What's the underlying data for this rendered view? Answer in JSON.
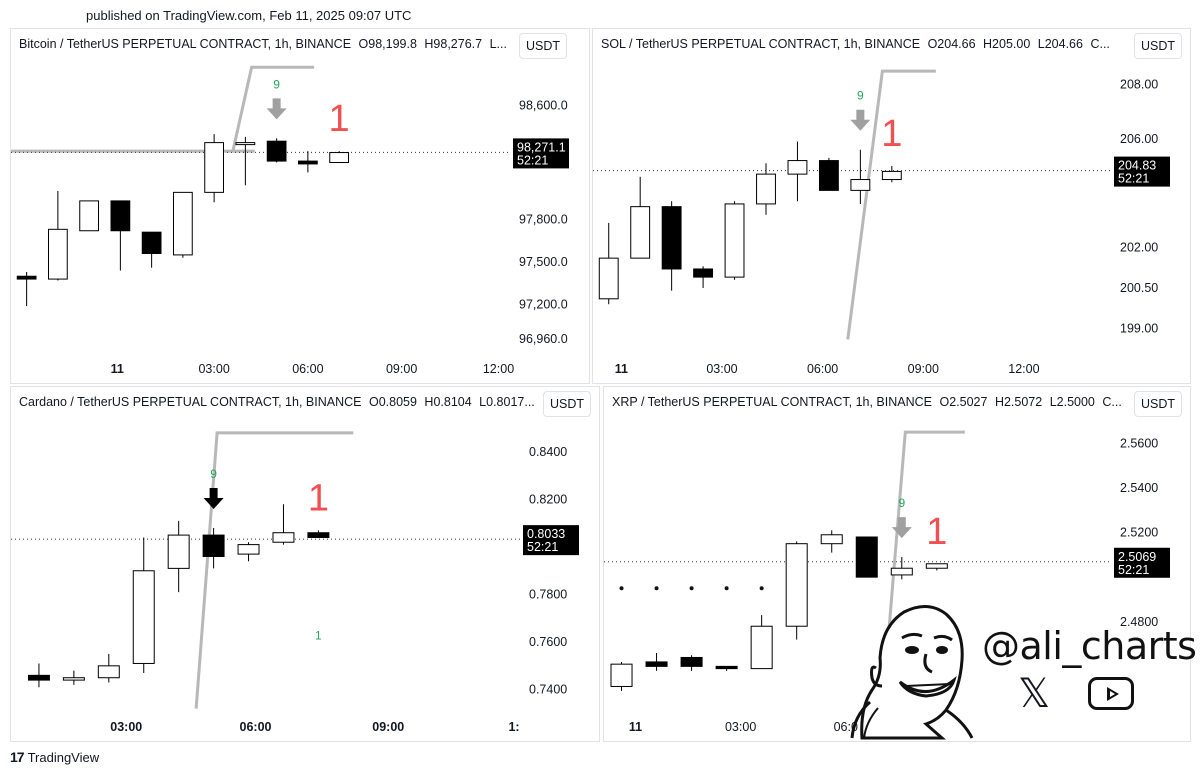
{
  "published": "published on TradingView.com, Feb 11, 2025 09:07 UTC",
  "brand": {
    "mark": "17",
    "name": "TradingView"
  },
  "watermark": {
    "handle": "@ali_charts",
    "icons": [
      "x-icon",
      "youtube-icon"
    ]
  },
  "colors": {
    "up_fill": "#ffffff",
    "down_fill": "#000000",
    "candle_border": "#000000",
    "signal_nine": "#26a65b",
    "signal_one": "#f05050",
    "arrow_grey": "#a0a0a0",
    "arrow_black": "#000000",
    "trendline": "#b8b8b8",
    "last_price_bg": "#000000"
  },
  "chart_data": [
    {
      "type": "candlestick",
      "title_parts": [
        "Bitcoin / TetherUS PERPETUAL CONTRACT, 1h, BINANCE",
        "O98,199.8",
        "H98,276.7",
        "L..."
      ],
      "currency": "USDT",
      "xlim": [
        0.5,
        16.5
      ],
      "x_ticks": [
        {
          "x": 3.9,
          "label": "11"
        },
        {
          "x": 7,
          "label": "03:00"
        },
        {
          "x": 10,
          "label": "06:00"
        },
        {
          "x": 13,
          "label": "09:00"
        },
        {
          "x": 16.1,
          "label": "12:00"
        }
      ],
      "ylim": [
        96860,
        98900
      ],
      "y_ticks": [
        {
          "v": 98600,
          "label": "98,600.0"
        },
        {
          "v": 97800,
          "label": "97,800.0"
        },
        {
          "v": 97500,
          "label": "97,500.0"
        },
        {
          "v": 97200,
          "label": "97,200.0"
        },
        {
          "v": 96960,
          "label": "96,960.0"
        }
      ],
      "candles": [
        {
          "x": 1,
          "o": 97400,
          "h": 97430,
          "l": 97190,
          "c": 97380
        },
        {
          "x": 2,
          "o": 97380,
          "h": 98000,
          "l": 97370,
          "c": 97730
        },
        {
          "x": 3,
          "o": 97720,
          "h": 97910,
          "l": 97720,
          "c": 97930
        },
        {
          "x": 4,
          "o": 97930,
          "h": 97920,
          "l": 97440,
          "c": 97720
        },
        {
          "x": 5,
          "o": 97710,
          "h": 97710,
          "l": 97460,
          "c": 97560
        },
        {
          "x": 6,
          "o": 97550,
          "h": 97980,
          "l": 97530,
          "c": 97990
        },
        {
          "x": 7,
          "o": 97990,
          "h": 98400,
          "l": 97920,
          "c": 98340
        },
        {
          "x": 8,
          "o": 98340,
          "h": 98380,
          "l": 98040,
          "c": 98340
        },
        {
          "x": 9,
          "o": 98350,
          "h": 98370,
          "l": 98200,
          "c": 98210
        },
        {
          "x": 10,
          "o": 98210,
          "h": 98280,
          "l": 98130,
          "c": 98190
        },
        {
          "x": 11,
          "o": 98200,
          "h": 98280,
          "l": 98200,
          "c": 98270
        }
      ],
      "last_price": {
        "value": 98271.1,
        "label": "98,271.1",
        "countdown": "52:21"
      },
      "signals": {
        "nine": {
          "x": 9,
          "label": "9",
          "arrow": "grey"
        },
        "one": {
          "x": 11,
          "label": "1"
        }
      },
      "trendline": {
        "points": [
          [
            7.6,
            98280
          ],
          [
            8.2,
            98870
          ],
          [
            10.2,
            98870
          ]
        ]
      },
      "horizontal_line": {
        "y": 98280,
        "x_from": 0.5,
        "x_to": 8.3
      }
    },
    {
      "type": "candlestick",
      "title_parts": [
        "SOL / TetherUS PERPETUAL CONTRACT, 1h, BINANCE",
        "O204.66",
        "H205.00",
        "L204.66",
        "C..."
      ],
      "currency": "USDT",
      "xlim": [
        0.5,
        17
      ],
      "x_ticks": [
        {
          "x": 1.4,
          "label": "11"
        },
        {
          "x": 4.6,
          "label": "03:00"
        },
        {
          "x": 7.8,
          "label": "06:00"
        },
        {
          "x": 11,
          "label": "09:00"
        },
        {
          "x": 14.2,
          "label": "12:00"
        }
      ],
      "ylim": [
        198.1,
        208.8
      ],
      "y_ticks": [
        {
          "v": 208,
          "label": "208.00"
        },
        {
          "v": 206,
          "label": "206.00"
        },
        {
          "v": 202,
          "label": "202.00"
        },
        {
          "v": 200.5,
          "label": "200.50"
        },
        {
          "v": 199,
          "label": "199.00"
        }
      ],
      "candles": [
        {
          "x": 1,
          "o": 200.1,
          "h": 202.9,
          "l": 199.9,
          "c": 201.6
        },
        {
          "x": 2,
          "o": 201.6,
          "h": 204.6,
          "l": 201.6,
          "c": 203.5
        },
        {
          "x": 3,
          "o": 203.5,
          "h": 203.7,
          "l": 200.4,
          "c": 201.2
        },
        {
          "x": 4,
          "o": 201.2,
          "h": 201.3,
          "l": 200.5,
          "c": 200.9
        },
        {
          "x": 5,
          "o": 200.9,
          "h": 203.7,
          "l": 200.8,
          "c": 203.6
        },
        {
          "x": 6,
          "o": 203.6,
          "h": 205.1,
          "l": 203.2,
          "c": 204.7
        },
        {
          "x": 7,
          "o": 204.7,
          "h": 205.9,
          "l": 203.7,
          "c": 205.2
        },
        {
          "x": 8,
          "o": 205.2,
          "h": 205.3,
          "l": 204.2,
          "c": 204.1
        },
        {
          "x": 9,
          "o": 204.1,
          "h": 205.6,
          "l": 203.6,
          "c": 204.5
        },
        {
          "x": 10,
          "o": 204.5,
          "h": 205.0,
          "l": 204.4,
          "c": 204.8
        }
      ],
      "last_price": {
        "value": 204.83,
        "label": "204.83",
        "countdown": "52:21"
      },
      "signals": {
        "nine": {
          "x": 9,
          "label": "9",
          "arrow": "grey"
        },
        "one": {
          "x": 10,
          "label": "1"
        }
      },
      "trendline": {
        "points": [
          [
            8.6,
            198.6
          ],
          [
            9.7,
            208.5
          ],
          [
            11.4,
            208.5
          ]
        ]
      },
      "horizontal_line": null
    },
    {
      "type": "candlestick",
      "title_parts": [
        "Cardano / TetherUS PERPETUAL CONTRACT, 1h, BINANCE",
        "O0.8059",
        "H0.8104",
        "L0.8017..."
      ],
      "currency": "USDT",
      "xlim": [
        0.2,
        14.8
      ],
      "x_ticks": [
        {
          "x": 3.5,
          "label": "03:00"
        },
        {
          "x": 7.2,
          "label": "06:00"
        },
        {
          "x": 11,
          "label": "09:00"
        },
        {
          "x": 14.6,
          "label": "1:"
        }
      ],
      "ylim": [
        0.731,
        0.853
      ],
      "y_ticks": [
        {
          "v": 0.84,
          "label": "0.8400"
        },
        {
          "v": 0.82,
          "label": "0.8200"
        },
        {
          "v": 0.78,
          "label": "0.7800"
        },
        {
          "v": 0.76,
          "label": "0.7600"
        },
        {
          "v": 0.74,
          "label": "0.7400"
        }
      ],
      "candles": [
        {
          "x": 1,
          "o": 0.746,
          "h": 0.751,
          "l": 0.741,
          "c": 0.744
        },
        {
          "x": 2,
          "o": 0.744,
          "h": 0.748,
          "l": 0.742,
          "c": 0.745
        },
        {
          "x": 3,
          "o": 0.745,
          "h": 0.755,
          "l": 0.743,
          "c": 0.75
        },
        {
          "x": 4,
          "o": 0.751,
          "h": 0.804,
          "l": 0.747,
          "c": 0.79
        },
        {
          "x": 5,
          "o": 0.791,
          "h": 0.811,
          "l": 0.781,
          "c": 0.805
        },
        {
          "x": 6,
          "o": 0.805,
          "h": 0.808,
          "l": 0.791,
          "c": 0.796
        },
        {
          "x": 7,
          "o": 0.797,
          "h": 0.802,
          "l": 0.794,
          "c": 0.801
        },
        {
          "x": 8,
          "o": 0.802,
          "h": 0.818,
          "l": 0.801,
          "c": 0.806
        },
        {
          "x": 9,
          "o": 0.806,
          "h": 0.807,
          "l": 0.804,
          "c": 0.804
        }
      ],
      "last_price": {
        "value": 0.8033,
        "label": "0.8033",
        "countdown": "52:21"
      },
      "signals": {
        "nine": {
          "x": 6,
          "label": "9",
          "arrow": "black"
        },
        "one": {
          "x": 9,
          "label": "1"
        },
        "extra": {
          "x": 9,
          "label": "1",
          "y": 0.761
        }
      },
      "trendline": {
        "points": [
          [
            5.5,
            0.732
          ],
          [
            6.1,
            0.848
          ],
          [
            10.0,
            0.848
          ]
        ]
      },
      "horizontal_line": null
    },
    {
      "type": "candlestick",
      "title_parts": [
        "XRP / TetherUS PERPETUAL CONTRACT, 1h, BINANCE",
        "O2.5027",
        "H2.5072",
        "L2.5000",
        "C..."
      ],
      "currency": "USDT",
      "xlim": [
        0.5,
        15
      ],
      "x_ticks": [
        {
          "x": 1.4,
          "label": "11"
        },
        {
          "x": 4.4,
          "label": "03:00"
        },
        {
          "x": 7.4,
          "label": "06:0"
        }
      ],
      "ylim": [
        2.44,
        2.57
      ],
      "y_ticks": [
        {
          "v": 2.56,
          "label": "2.5600"
        },
        {
          "v": 2.54,
          "label": "2.5400"
        },
        {
          "v": 2.52,
          "label": "2.5200"
        },
        {
          "v": 2.48,
          "label": "2.4800"
        }
      ],
      "candles": [
        {
          "x": 1,
          "o": 2.451,
          "h": 2.462,
          "l": 2.449,
          "c": 2.461
        },
        {
          "x": 2,
          "o": 2.462,
          "h": 2.466,
          "l": 2.458,
          "c": 2.46
        },
        {
          "x": 3,
          "o": 2.464,
          "h": 2.465,
          "l": 2.458,
          "c": 2.46
        },
        {
          "x": 4,
          "o": 2.46,
          "h": 2.46,
          "l": 2.458,
          "c": 2.459
        },
        {
          "x": 5,
          "o": 2.459,
          "h": 2.483,
          "l": 2.459,
          "c": 2.478
        },
        {
          "x": 6,
          "o": 2.478,
          "h": 2.516,
          "l": 2.472,
          "c": 2.515
        },
        {
          "x": 7,
          "o": 2.515,
          "h": 2.521,
          "l": 2.511,
          "c": 2.519
        },
        {
          "x": 8,
          "o": 2.518,
          "h": 2.518,
          "l": 2.5,
          "c": 2.5
        },
        {
          "x": 9,
          "o": 2.501,
          "h": 2.509,
          "l": 2.499,
          "c": 2.504
        },
        {
          "x": 10,
          "o": 2.504,
          "h": 2.505,
          "l": 2.503,
          "c": 2.506
        }
      ],
      "last_price": {
        "value": 2.5069,
        "label": "2.5069",
        "countdown": "52:21"
      },
      "signals": {
        "nine": {
          "x": 9,
          "label": "9",
          "arrow": "grey"
        },
        "one": {
          "x": 10,
          "label": "1"
        }
      },
      "trendline": {
        "points": [
          [
            8.6,
            2.47
          ],
          [
            9.1,
            2.565
          ],
          [
            10.8,
            2.565
          ]
        ]
      },
      "dots": {
        "y": 2.495,
        "xs": [
          1,
          2,
          3,
          4,
          5
        ]
      },
      "horizontal_line": null
    }
  ]
}
